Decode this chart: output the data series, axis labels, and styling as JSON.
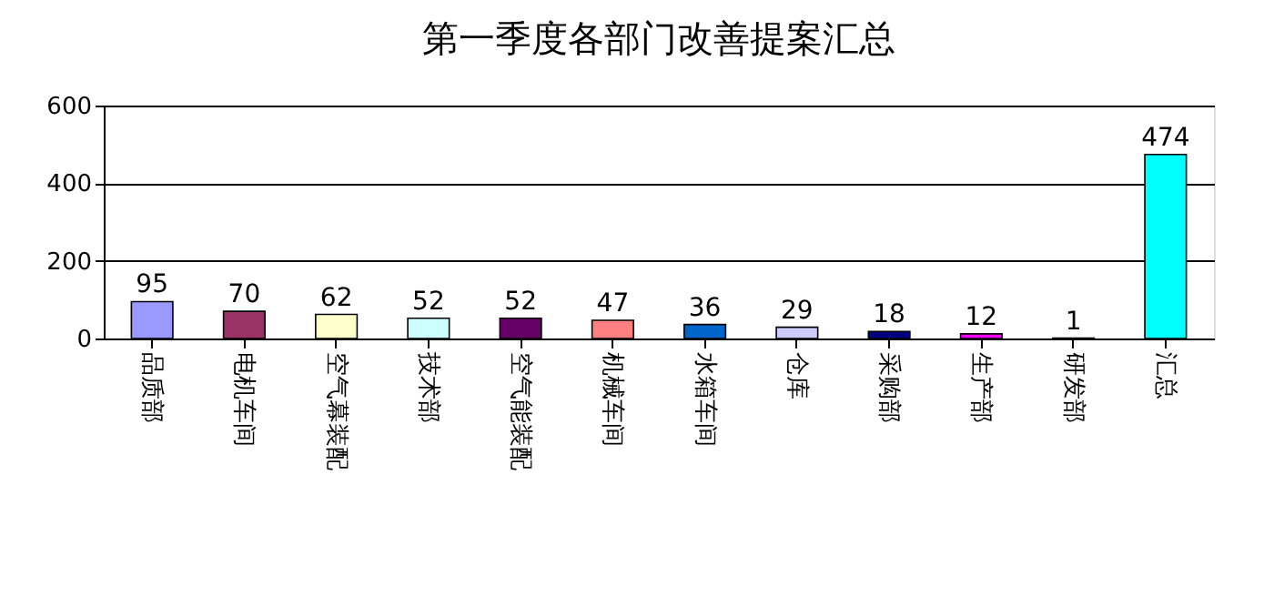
{
  "chart_data": {
    "type": "bar",
    "title": "第一季度各部门改善提案汇总",
    "categories": [
      "品质部",
      "电机车间",
      "空气幕装配",
      "技术部",
      "空气能装配",
      "机械车间",
      "水箱车间",
      "仓库",
      "采购部",
      "生产部",
      "研发部",
      "汇总"
    ],
    "values": [
      95,
      70,
      62,
      52,
      52,
      47,
      36,
      29,
      18,
      12,
      1,
      474
    ],
    "colors": [
      "#9999ff",
      "#993366",
      "#ffffcc",
      "#ccffff",
      "#660066",
      "#ff8080",
      "#0066cc",
      "#ccccff",
      "#000080",
      "#ff00ff",
      "#ffff00",
      "#00ffff"
    ],
    "ylim": [
      0,
      600
    ],
    "yticks": [
      0,
      200,
      400,
      600
    ],
    "grid": "y",
    "data_labels": true,
    "legend": false
  }
}
